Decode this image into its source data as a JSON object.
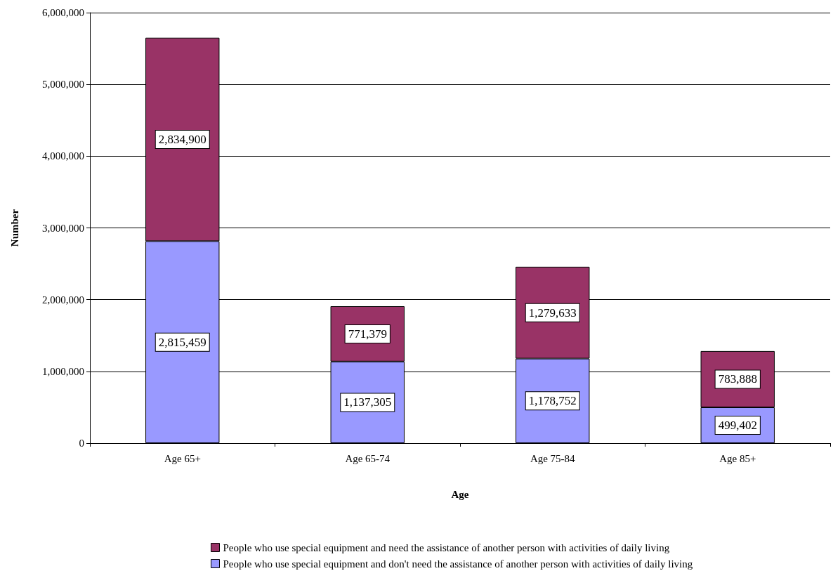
{
  "chart_data": {
    "type": "bar",
    "stacked": true,
    "xlabel": "Age",
    "ylabel": "Number",
    "categories": [
      "Age 65+",
      "Age 65-74",
      "Age 75-84",
      "Age 85+"
    ],
    "series": [
      {
        "name": "People who use special equipment and don't need the assistance of another person with activities of daily living",
        "color": "#9999ff",
        "values": [
          2815459,
          1137305,
          1178752,
          499402
        ],
        "value_labels": [
          "2,815,459",
          "1,137,305",
          "1,178,752",
          "499,402"
        ]
      },
      {
        "name": "People who use special equipment and need the assistance of another person with activities of daily living",
        "color": "#993366",
        "values": [
          2834900,
          771379,
          1279633,
          783888
        ],
        "value_labels": [
          "2,834,900",
          "771,379",
          "1,279,633",
          "783,888"
        ]
      }
    ],
    "ylim": [
      0,
      6000000
    ],
    "yticks": [
      0,
      {
        "value": 1000000,
        "label": "1,000,000"
      },
      {
        "value": 2000000,
        "label": "2,000,000"
      },
      {
        "value": 3000000,
        "label": "3,000,000"
      },
      {
        "value": 4000000,
        "label": "4,000,000"
      },
      {
        "value": 5000000,
        "label": "5,000,000"
      },
      {
        "value": 6000000,
        "label": "6,000,000"
      }
    ],
    "grid": "y",
    "legend": "bottom"
  }
}
